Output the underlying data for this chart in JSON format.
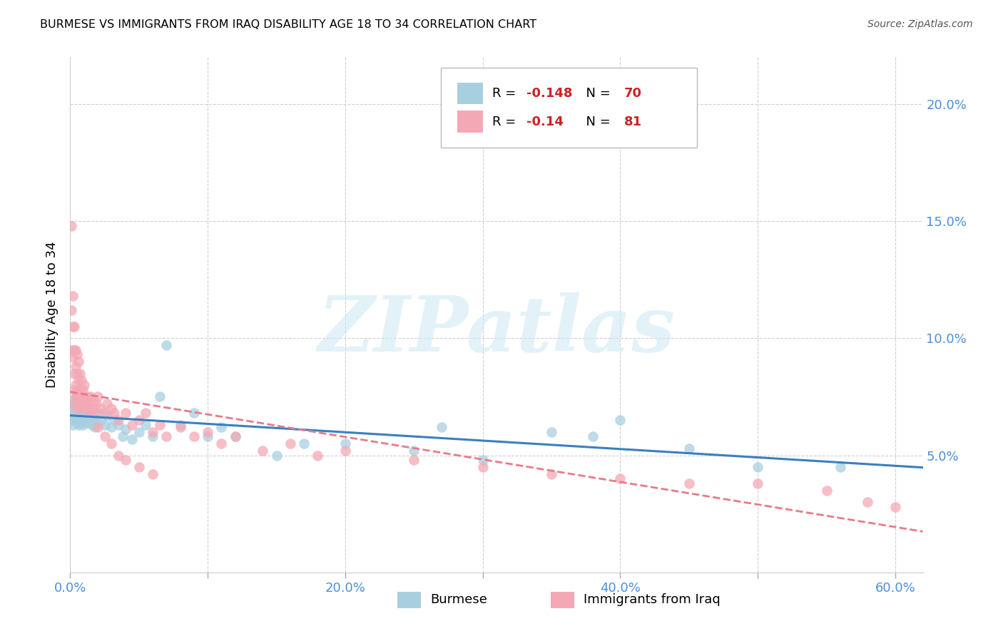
{
  "title": "BURMESE VS IMMIGRANTS FROM IRAQ DISABILITY AGE 18 TO 34 CORRELATION CHART",
  "source": "Source: ZipAtlas.com",
  "ylabel": "Disability Age 18 to 34",
  "xlim": [
    0.0,
    0.62
  ],
  "ylim": [
    0.0,
    0.22
  ],
  "xtick_positions": [
    0.0,
    0.1,
    0.2,
    0.3,
    0.4,
    0.5,
    0.6
  ],
  "xticklabels": [
    "0.0%",
    "",
    "20.0%",
    "",
    "40.0%",
    "",
    "60.0%"
  ],
  "ytick_positions": [
    0.05,
    0.1,
    0.15,
    0.2
  ],
  "yticklabels": [
    "5.0%",
    "10.0%",
    "15.0%",
    "20.0%"
  ],
  "burmese_color": "#a8cfe0",
  "iraq_color": "#f4a8b5",
  "burmese_line_color": "#3a7fc1",
  "iraq_line_color": "#e87a8a",
  "R_burmese": -0.148,
  "N_burmese": 70,
  "R_iraq": -0.14,
  "N_iraq": 81,
  "legend_label_burmese": "Burmese",
  "legend_label_iraq": "Immigrants from Iraq",
  "watermark": "ZIPatlas",
  "burmese_x": [
    0.001,
    0.001,
    0.002,
    0.002,
    0.002,
    0.003,
    0.003,
    0.003,
    0.003,
    0.004,
    0.004,
    0.004,
    0.004,
    0.005,
    0.005,
    0.005,
    0.005,
    0.006,
    0.006,
    0.006,
    0.007,
    0.007,
    0.007,
    0.008,
    0.008,
    0.009,
    0.009,
    0.01,
    0.01,
    0.011,
    0.012,
    0.013,
    0.014,
    0.015,
    0.016,
    0.017,
    0.018,
    0.019,
    0.02,
    0.022,
    0.025,
    0.027,
    0.03,
    0.032,
    0.035,
    0.038,
    0.04,
    0.045,
    0.05,
    0.055,
    0.06,
    0.065,
    0.07,
    0.08,
    0.09,
    0.1,
    0.11,
    0.12,
    0.15,
    0.17,
    0.2,
    0.25,
    0.27,
    0.3,
    0.35,
    0.38,
    0.4,
    0.45,
    0.5,
    0.56
  ],
  "burmese_y": [
    0.07,
    0.065,
    0.068,
    0.072,
    0.063,
    0.066,
    0.071,
    0.068,
    0.074,
    0.065,
    0.069,
    0.073,
    0.067,
    0.064,
    0.07,
    0.066,
    0.072,
    0.063,
    0.068,
    0.071,
    0.067,
    0.065,
    0.07,
    0.064,
    0.069,
    0.063,
    0.068,
    0.067,
    0.072,
    0.065,
    0.068,
    0.064,
    0.067,
    0.07,
    0.063,
    0.066,
    0.062,
    0.065,
    0.068,
    0.065,
    0.063,
    0.067,
    0.062,
    0.065,
    0.063,
    0.058,
    0.061,
    0.057,
    0.06,
    0.063,
    0.058,
    0.075,
    0.097,
    0.063,
    0.068,
    0.058,
    0.062,
    0.058,
    0.05,
    0.055,
    0.055,
    0.052,
    0.062,
    0.048,
    0.06,
    0.058,
    0.065,
    0.053,
    0.045,
    0.045
  ],
  "iraq_x": [
    0.001,
    0.001,
    0.001,
    0.002,
    0.002,
    0.002,
    0.003,
    0.003,
    0.003,
    0.003,
    0.003,
    0.004,
    0.004,
    0.004,
    0.004,
    0.005,
    0.005,
    0.005,
    0.005,
    0.006,
    0.006,
    0.006,
    0.007,
    0.007,
    0.007,
    0.008,
    0.008,
    0.008,
    0.009,
    0.009,
    0.01,
    0.01,
    0.011,
    0.012,
    0.013,
    0.014,
    0.015,
    0.016,
    0.017,
    0.018,
    0.019,
    0.02,
    0.022,
    0.025,
    0.027,
    0.03,
    0.032,
    0.035,
    0.04,
    0.045,
    0.05,
    0.055,
    0.06,
    0.065,
    0.07,
    0.08,
    0.09,
    0.1,
    0.11,
    0.12,
    0.14,
    0.16,
    0.18,
    0.2,
    0.25,
    0.3,
    0.35,
    0.4,
    0.45,
    0.5,
    0.55,
    0.58,
    0.6,
    0.015,
    0.02,
    0.025,
    0.03,
    0.035,
    0.04,
    0.05,
    0.06
  ],
  "iraq_y": [
    0.148,
    0.112,
    0.095,
    0.118,
    0.105,
    0.092,
    0.085,
    0.095,
    0.105,
    0.078,
    0.072,
    0.08,
    0.088,
    0.095,
    0.075,
    0.078,
    0.085,
    0.093,
    0.07,
    0.075,
    0.082,
    0.09,
    0.072,
    0.078,
    0.085,
    0.07,
    0.075,
    0.082,
    0.072,
    0.078,
    0.075,
    0.08,
    0.072,
    0.075,
    0.07,
    0.073,
    0.075,
    0.07,
    0.073,
    0.068,
    0.072,
    0.075,
    0.07,
    0.068,
    0.072,
    0.07,
    0.068,
    0.065,
    0.068,
    0.063,
    0.065,
    0.068,
    0.06,
    0.063,
    0.058,
    0.062,
    0.058,
    0.06,
    0.055,
    0.058,
    0.052,
    0.055,
    0.05,
    0.052,
    0.048,
    0.045,
    0.042,
    0.04,
    0.038,
    0.038,
    0.035,
    0.03,
    0.028,
    0.068,
    0.062,
    0.058,
    0.055,
    0.05,
    0.048,
    0.045,
    0.042
  ]
}
